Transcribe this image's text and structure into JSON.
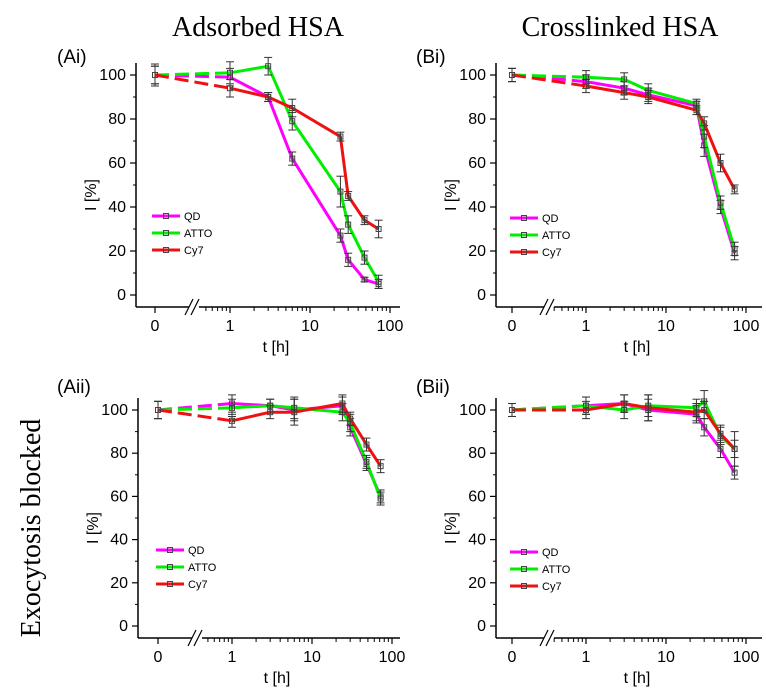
{
  "figure": {
    "column_titles": [
      "Adsorbed HSA",
      "Crosslinked HSA"
    ],
    "row_title": "Exocytosis blocked",
    "colors": {
      "QD": "#ff00ff",
      "ATTO": "#00ee00",
      "Cy7": "#ee1111"
    }
  },
  "chart_data": [
    {
      "type": "line",
      "panel_label": "(Ai)",
      "xlabel": "t [h]",
      "ylabel": "I [%]",
      "xscale": "log with broken axis at 0",
      "x_tick_labels": [
        "0",
        "1",
        "10",
        "100"
      ],
      "y_tick_labels": [
        "0",
        "20",
        "40",
        "60",
        "80",
        "100"
      ],
      "ylim": [
        0,
        110
      ],
      "legend_position": "lower-left",
      "series": [
        {
          "name": "QD",
          "color": "#ff00ff",
          "x": [
            0,
            1,
            3,
            6,
            24,
            30,
            48,
            72
          ],
          "y": [
            100,
            99,
            90,
            62,
            27,
            16,
            7,
            5
          ],
          "err": [
            4,
            4,
            2,
            3,
            3,
            3,
            1,
            2
          ]
        },
        {
          "name": "ATTO",
          "color": "#00ee00",
          "x": [
            0,
            1,
            3,
            6,
            24,
            30,
            48,
            72
          ],
          "y": [
            100,
            101,
            104,
            79,
            47,
            32,
            17,
            6
          ],
          "err": [
            4,
            5,
            4,
            4,
            7,
            4,
            3,
            3
          ]
        },
        {
          "name": "Cy7",
          "color": "#ee1111",
          "x": [
            0,
            1,
            3,
            6,
            24,
            30,
            48,
            72
          ],
          "y": [
            100,
            94,
            90,
            85,
            72,
            45,
            34,
            30
          ],
          "err": [
            5,
            4,
            2,
            4,
            2,
            2,
            2,
            4
          ]
        }
      ]
    },
    {
      "type": "line",
      "panel_label": "(Bi)",
      "xlabel": "t [h]",
      "ylabel": "I [%]",
      "xscale": "log with broken axis at 0",
      "x_tick_labels": [
        "0",
        "1",
        "10",
        "100"
      ],
      "y_tick_labels": [
        "0",
        "20",
        "40",
        "60",
        "80",
        "100"
      ],
      "ylim": [
        0,
        110
      ],
      "legend_position": "lower-left",
      "series": [
        {
          "name": "QD",
          "color": "#ff00ff",
          "x": [
            0,
            1,
            3,
            6,
            24,
            30,
            48,
            72
          ],
          "y": [
            100,
            97,
            94,
            91,
            86,
            68,
            40,
            19
          ],
          "err": [
            3,
            3,
            3,
            3,
            2,
            5,
            3,
            3
          ]
        },
        {
          "name": "ATTO",
          "color": "#00ee00",
          "x": [
            0,
            1,
            3,
            6,
            24,
            30,
            48,
            72
          ],
          "y": [
            100,
            99,
            98,
            93,
            87,
            72,
            42,
            21
          ],
          "err": [
            3,
            3,
            3,
            3,
            2,
            5,
            3,
            3
          ]
        },
        {
          "name": "Cy7",
          "color": "#ee1111",
          "x": [
            0,
            1,
            3,
            6,
            24,
            30,
            48,
            72
          ],
          "y": [
            100,
            95,
            92,
            90,
            84,
            78,
            60,
            48
          ],
          "err": [
            3,
            3,
            3,
            3,
            2,
            3,
            4,
            2
          ]
        }
      ]
    },
    {
      "type": "line",
      "panel_label": "(Aii)",
      "xlabel": "t [h]",
      "ylabel": "I [%]",
      "xscale": "log with broken axis at 0",
      "x_tick_labels": [
        "0",
        "1",
        "10",
        "100"
      ],
      "y_tick_labels": [
        "0",
        "20",
        "40",
        "60",
        "80",
        "100"
      ],
      "ylim": [
        0,
        110
      ],
      "legend_position": "lower-left",
      "series": [
        {
          "name": "QD",
          "color": "#ff00ff",
          "x": [
            0,
            1,
            3,
            6,
            24,
            30,
            48,
            72
          ],
          "y": [
            100,
            103,
            102,
            100,
            102,
            92,
            75,
            60
          ],
          "err": [
            4,
            4,
            3,
            5,
            4,
            4,
            3,
            3
          ]
        },
        {
          "name": "ATTO",
          "color": "#00ee00",
          "x": [
            0,
            1,
            3,
            6,
            24,
            30,
            48,
            72
          ],
          "y": [
            100,
            101,
            102,
            101,
            99,
            94,
            76,
            59
          ],
          "err": [
            4,
            4,
            3,
            5,
            4,
            4,
            3,
            3
          ]
        },
        {
          "name": "Cy7",
          "color": "#ee1111",
          "x": [
            0,
            1,
            3,
            6,
            24,
            30,
            48,
            72
          ],
          "y": [
            100,
            95,
            99,
            99,
            103,
            96,
            84,
            74
          ],
          "err": [
            4,
            3,
            3,
            6,
            4,
            3,
            3,
            3
          ]
        }
      ]
    },
    {
      "type": "line",
      "panel_label": "(Bii)",
      "xlabel": "t [h]",
      "ylabel": "I [%]",
      "xscale": "log with broken axis at 0",
      "x_tick_labels": [
        "0",
        "1",
        "10",
        "100"
      ],
      "y_tick_labels": [
        "0",
        "20",
        "40",
        "60",
        "80",
        "100"
      ],
      "ylim": [
        0,
        110
      ],
      "legend_position": "lower-left",
      "series": [
        {
          "name": "QD",
          "color": "#ff00ff",
          "x": [
            0,
            1,
            3,
            6,
            24,
            30,
            48,
            72
          ],
          "y": [
            100,
            102,
            103,
            100,
            98,
            92,
            82,
            71
          ],
          "err": [
            3,
            4,
            4,
            5,
            4,
            4,
            4,
            3
          ]
        },
        {
          "name": "ATTO",
          "color": "#00ee00",
          "x": [
            0,
            1,
            3,
            6,
            24,
            30,
            48,
            72
          ],
          "y": [
            100,
            102,
            100,
            102,
            101,
            104,
            88,
            82
          ],
          "err": [
            3,
            4,
            4,
            5,
            4,
            5,
            4,
            4
          ]
        },
        {
          "name": "Cy7",
          "color": "#ee1111",
          "x": [
            0,
            1,
            3,
            6,
            24,
            30,
            48,
            72
          ],
          "y": [
            100,
            100,
            103,
            101,
            99,
            100,
            89,
            82
          ],
          "err": [
            3,
            4,
            4,
            6,
            4,
            4,
            4,
            8
          ]
        }
      ]
    }
  ]
}
